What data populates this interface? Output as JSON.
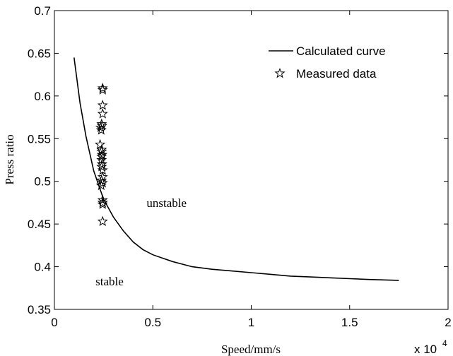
{
  "chart_data": {
    "type": "line",
    "title": "",
    "xlabel": "Speed/mm/s",
    "ylabel": "Press ratio",
    "x_exponent_label": "x 10",
    "x_exponent_power": "4",
    "xlim": [
      0,
      2
    ],
    "ylim": [
      0.35,
      0.7
    ],
    "x_ticks": [
      "0",
      "0.5",
      "1",
      "1.5",
      "2"
    ],
    "y_ticks": [
      "0.35",
      "0.4",
      "0.45",
      "0.5",
      "0.55",
      "0.6",
      "0.65",
      "0.7"
    ],
    "grid": false,
    "legend_position": "top-right",
    "series": [
      {
        "name": "Calculated curve",
        "style": "line",
        "color": "#000000",
        "x": [
          0.1,
          0.13,
          0.16,
          0.2,
          0.25,
          0.3,
          0.35,
          0.4,
          0.45,
          0.5,
          0.6,
          0.7,
          0.8,
          0.9,
          1.0,
          1.1,
          1.2,
          1.3,
          1.4,
          1.5,
          1.6,
          1.75
        ],
        "y": [
          0.645,
          0.592,
          0.553,
          0.512,
          0.479,
          0.458,
          0.442,
          0.429,
          0.42,
          0.414,
          0.406,
          0.4,
          0.397,
          0.395,
          0.393,
          0.391,
          0.389,
          0.388,
          0.387,
          0.386,
          0.385,
          0.384
        ]
      },
      {
        "name": "Measured data",
        "style": "star-marker",
        "color": "#000000",
        "x": [
          0.245,
          0.245,
          0.245,
          0.245,
          0.24,
          0.242,
          0.235,
          0.238,
          0.232,
          0.24,
          0.24,
          0.242,
          0.24,
          0.24,
          0.242,
          0.24,
          0.245,
          0.245,
          0.24,
          0.245,
          0.238,
          0.245,
          0.245,
          0.245,
          0.245
        ],
        "y": [
          0.609,
          0.607,
          0.589,
          0.579,
          0.567,
          0.565,
          0.563,
          0.56,
          0.543,
          0.537,
          0.535,
          0.531,
          0.529,
          0.525,
          0.52,
          0.517,
          0.513,
          0.505,
          0.501,
          0.498,
          0.495,
          0.478,
          0.475,
          0.473,
          0.453
        ]
      }
    ],
    "annotations": [
      {
        "text": "unstable",
        "x": 0.57,
        "y": 0.47
      },
      {
        "text": "stable",
        "x": 0.28,
        "y": 0.378
      }
    ]
  }
}
